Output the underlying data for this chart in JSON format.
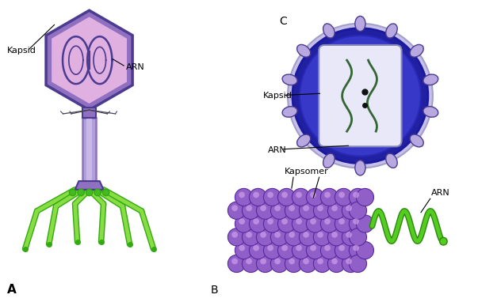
{
  "bg_color": "#ffffff",
  "label_A": "A",
  "label_B": "B",
  "label_C": "C",
  "text_kapsid_A": "Kapsid",
  "text_ARN_A": "ARN",
  "text_kapsid_C": "Kapsid",
  "text_ARN_C": "ARN",
  "text_kapsomer_B": "Kapsomer",
  "text_ARN_B": "ARN",
  "color_purple_light": "#c8a8e0",
  "color_purple_mid": "#9070c0",
  "color_purple_dark": "#4a3a90",
  "color_blue_dark": "#2020a0",
  "color_blue_mid": "#3838c8",
  "color_blue_ring": "#7070d8",
  "color_green": "#55cc22",
  "color_pink_light": "#e0b0e0",
  "color_lavender": "#b0a0d8",
  "color_white_ish": "#dcdcf0",
  "figsize": [
    6.03,
    3.82
  ],
  "dpi": 100
}
